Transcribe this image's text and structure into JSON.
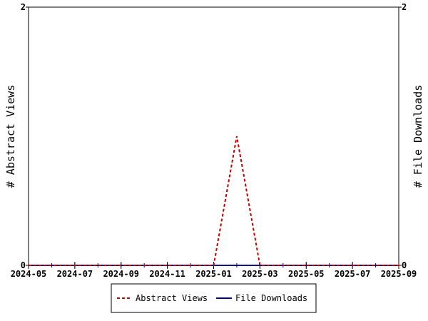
{
  "chart_data": {
    "type": "line",
    "title": "",
    "ylabel_left": "# Abstract Views",
    "ylabel_right": "# File Downloads",
    "x_tick_labels": [
      "2024-05",
      "2024-07",
      "2024-09",
      "2024-11",
      "2025-01",
      "2025-03",
      "2025-05",
      "2025-07",
      "2025-09"
    ],
    "x_range": [
      "2024-05",
      "2025-09"
    ],
    "y_left_range": [
      0,
      2
    ],
    "y_right_range": [
      0,
      2
    ],
    "y_left_tick_labels": [
      "0",
      "2"
    ],
    "y_right_tick_labels": [
      "0",
      "2"
    ],
    "grid": false,
    "legend_position": "bottom-center",
    "series": [
      {
        "name": "Abstract Views",
        "axis": "left",
        "style": "dashed",
        "color": "#cc0000",
        "x": [
          "2024-05",
          "2024-06",
          "2024-07",
          "2024-08",
          "2024-09",
          "2024-10",
          "2024-11",
          "2024-12",
          "2025-01",
          "2025-02",
          "2025-03",
          "2025-04",
          "2025-05",
          "2025-06",
          "2025-07",
          "2025-08",
          "2025-09"
        ],
        "values": [
          0,
          0,
          0,
          0,
          0,
          0,
          0,
          0,
          0,
          1,
          0,
          0,
          0,
          0,
          0,
          0,
          0
        ]
      },
      {
        "name": "File Downloads",
        "axis": "right",
        "style": "solid",
        "color": "#000099",
        "x": [
          "2024-05",
          "2024-06",
          "2024-07",
          "2024-08",
          "2024-09",
          "2024-10",
          "2024-11",
          "2024-12",
          "2025-01",
          "2025-02",
          "2025-03",
          "2025-04",
          "2025-05",
          "2025-06",
          "2025-07",
          "2025-08",
          "2025-09"
        ],
        "values": [
          0,
          0,
          0,
          0,
          0,
          0,
          0,
          0,
          0,
          0,
          0,
          0,
          0,
          0,
          0,
          0,
          0
        ]
      }
    ]
  }
}
